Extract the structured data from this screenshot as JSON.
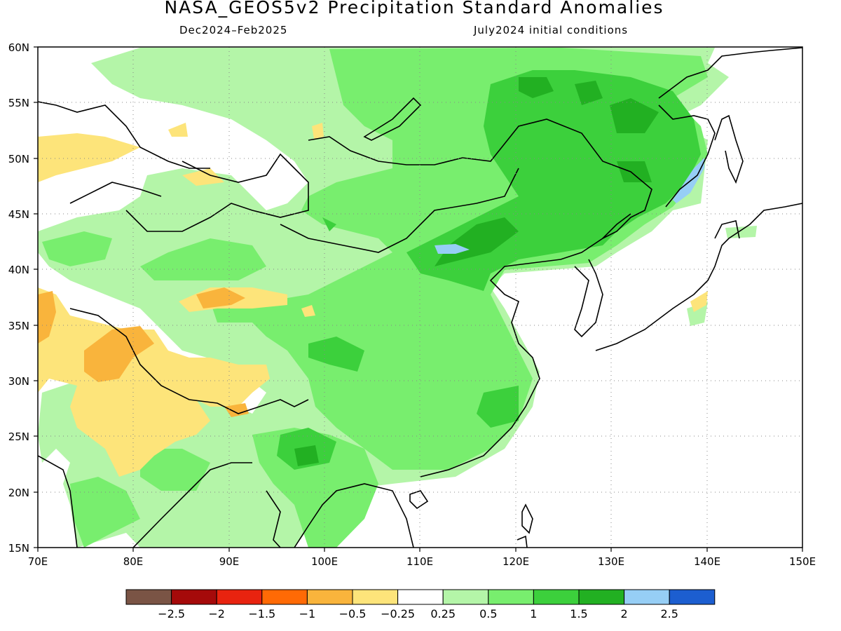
{
  "title": "NASA_GEOS5v2 Precipitation Standard Anomalies",
  "subtitle_left": "Dec2024–Feb2025",
  "subtitle_right": "July2024 initial conditions",
  "map": {
    "lon_range": [
      70,
      150
    ],
    "lat_range": [
      15,
      60
    ],
    "lon_ticks": [
      "70E",
      "80E",
      "90E",
      "100E",
      "110E",
      "120E",
      "130E",
      "140E",
      "150E"
    ],
    "lat_ticks": [
      "15N",
      "20N",
      "25N",
      "30N",
      "35N",
      "40N",
      "45N",
      "50N",
      "55N",
      "60N"
    ],
    "gridlines": "dotted"
  },
  "colorbar": {
    "colors": [
      "#7a5445",
      "#a50a0a",
      "#e8230f",
      "#ff6a05",
      "#f9b43c",
      "#fde47a",
      "#ffffff",
      "#b4f5a8",
      "#78ee6e",
      "#3cd03c",
      "#22b022",
      "#96cef5",
      "#1c5ed0"
    ],
    "labels": [
      "−2.5",
      "−2",
      "−1.5",
      "−1",
      "−0.5",
      "−0.25",
      "0.25",
      "0.5",
      "1",
      "1.5",
      "2",
      "2.5"
    ]
  },
  "legend_categories": {
    "dry": "#fde47a",
    "dry_moderate": "#f9b43c",
    "wet_light": "#b4f5a8",
    "wet": "#78ee6e",
    "wet_moderate": "#3cd03c",
    "wet_strong": "#22b022",
    "wet_very_strong": "#96cef5"
  }
}
